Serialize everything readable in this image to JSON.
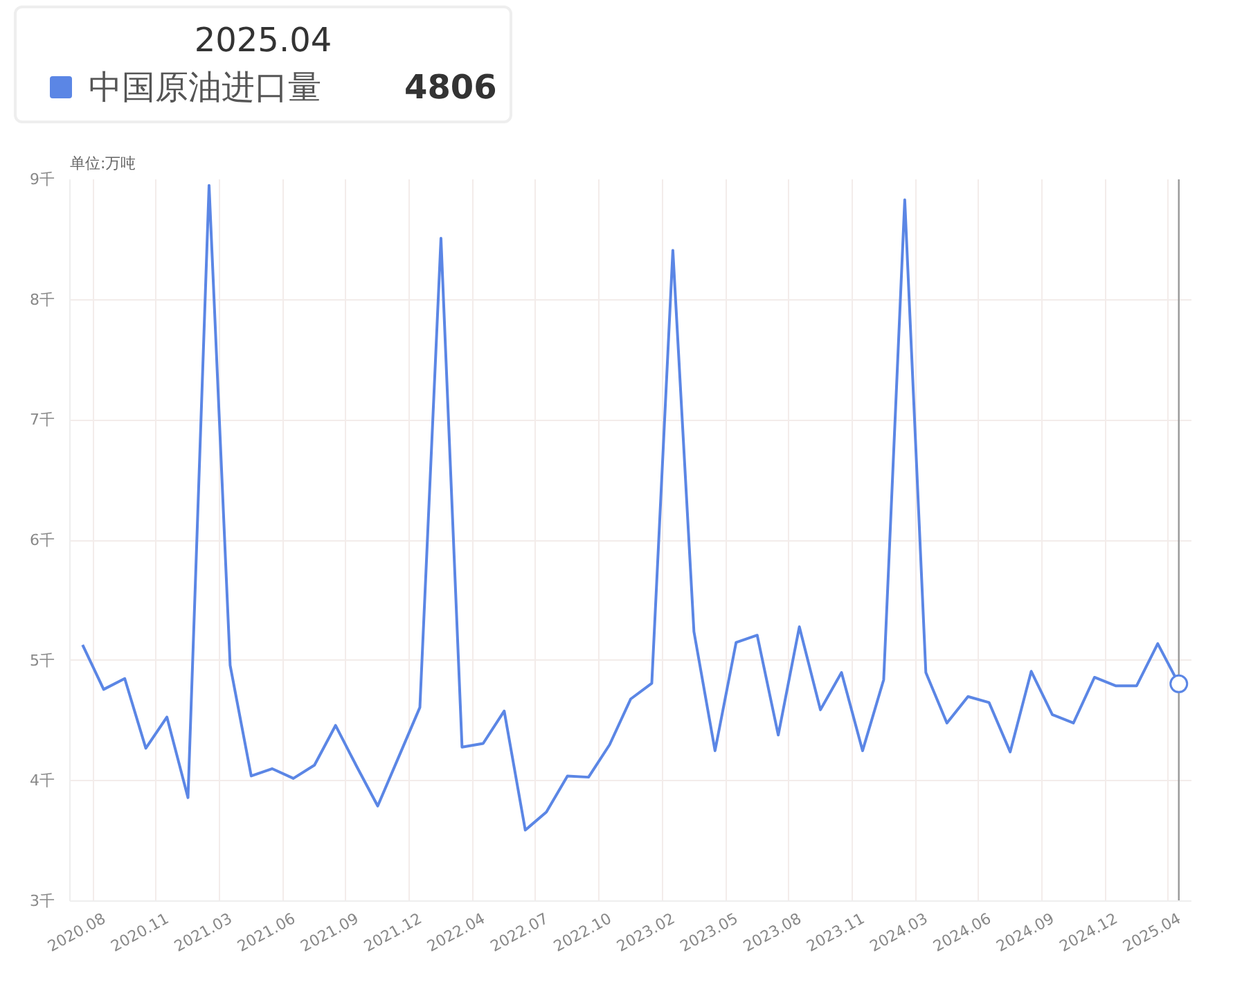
{
  "chart_data": {
    "type": "line",
    "ylabel": "单位:万吨",
    "categories": [
      null,
      "2020.08",
      null,
      null,
      "2020.11",
      null,
      null,
      "2021.03",
      null,
      null,
      "2021.06",
      null,
      null,
      "2021.09",
      null,
      null,
      "2021.12",
      null,
      null,
      "2022.04",
      null,
      null,
      "2022.07",
      null,
      null,
      "2022.10",
      null,
      null,
      "2023.02",
      null,
      null,
      "2023.05",
      null,
      null,
      "2023.08",
      null,
      null,
      "2023.11",
      null,
      null,
      "2024.03",
      null,
      null,
      "2024.06",
      null,
      null,
      "2024.09",
      null,
      null,
      "2024.12",
      null,
      null,
      "2025.04"
    ],
    "series": [
      {
        "name": "中国原油进口量",
        "color": "#5b86e5",
        "values": [
          5.13,
          4.76,
          4.85,
          4.27,
          4.53,
          3.86,
          8.95,
          4.96,
          4.04,
          4.1,
          4.02,
          4.13,
          4.46,
          4.12,
          3.79,
          4.2,
          4.61,
          8.51,
          4.28,
          4.31,
          4.58,
          3.59,
          3.74,
          4.04,
          4.03,
          4.3,
          4.68,
          4.81,
          8.41,
          5.24,
          4.25,
          5.15,
          5.21,
          4.38,
          5.28,
          4.59,
          4.9,
          4.25,
          4.84,
          8.83,
          4.9,
          4.48,
          4.7,
          4.65,
          4.24,
          4.91,
          4.55,
          4.48,
          4.86,
          4.79,
          4.79,
          5.14,
          4.806
        ]
      }
    ],
    "ylim": [
      3,
      9
    ],
    "yticks": [
      {
        "value": 3,
        "label": "3千"
      },
      {
        "value": 4,
        "label": "4千"
      },
      {
        "value": 5,
        "label": "5千"
      },
      {
        "value": 6,
        "label": "6千"
      },
      {
        "value": 7,
        "label": "7千"
      },
      {
        "value": 8,
        "label": "8千"
      },
      {
        "value": 9,
        "label": "9千"
      }
    ],
    "grid": true,
    "marker": "none",
    "line_style": "solid",
    "legend": "top left",
    "legend_title": "2025.04",
    "ref_lines": [
      {
        "axis": "x",
        "value": "2025.04",
        "color": "#999999"
      }
    ],
    "annotations": [
      "4806"
    ]
  }
}
